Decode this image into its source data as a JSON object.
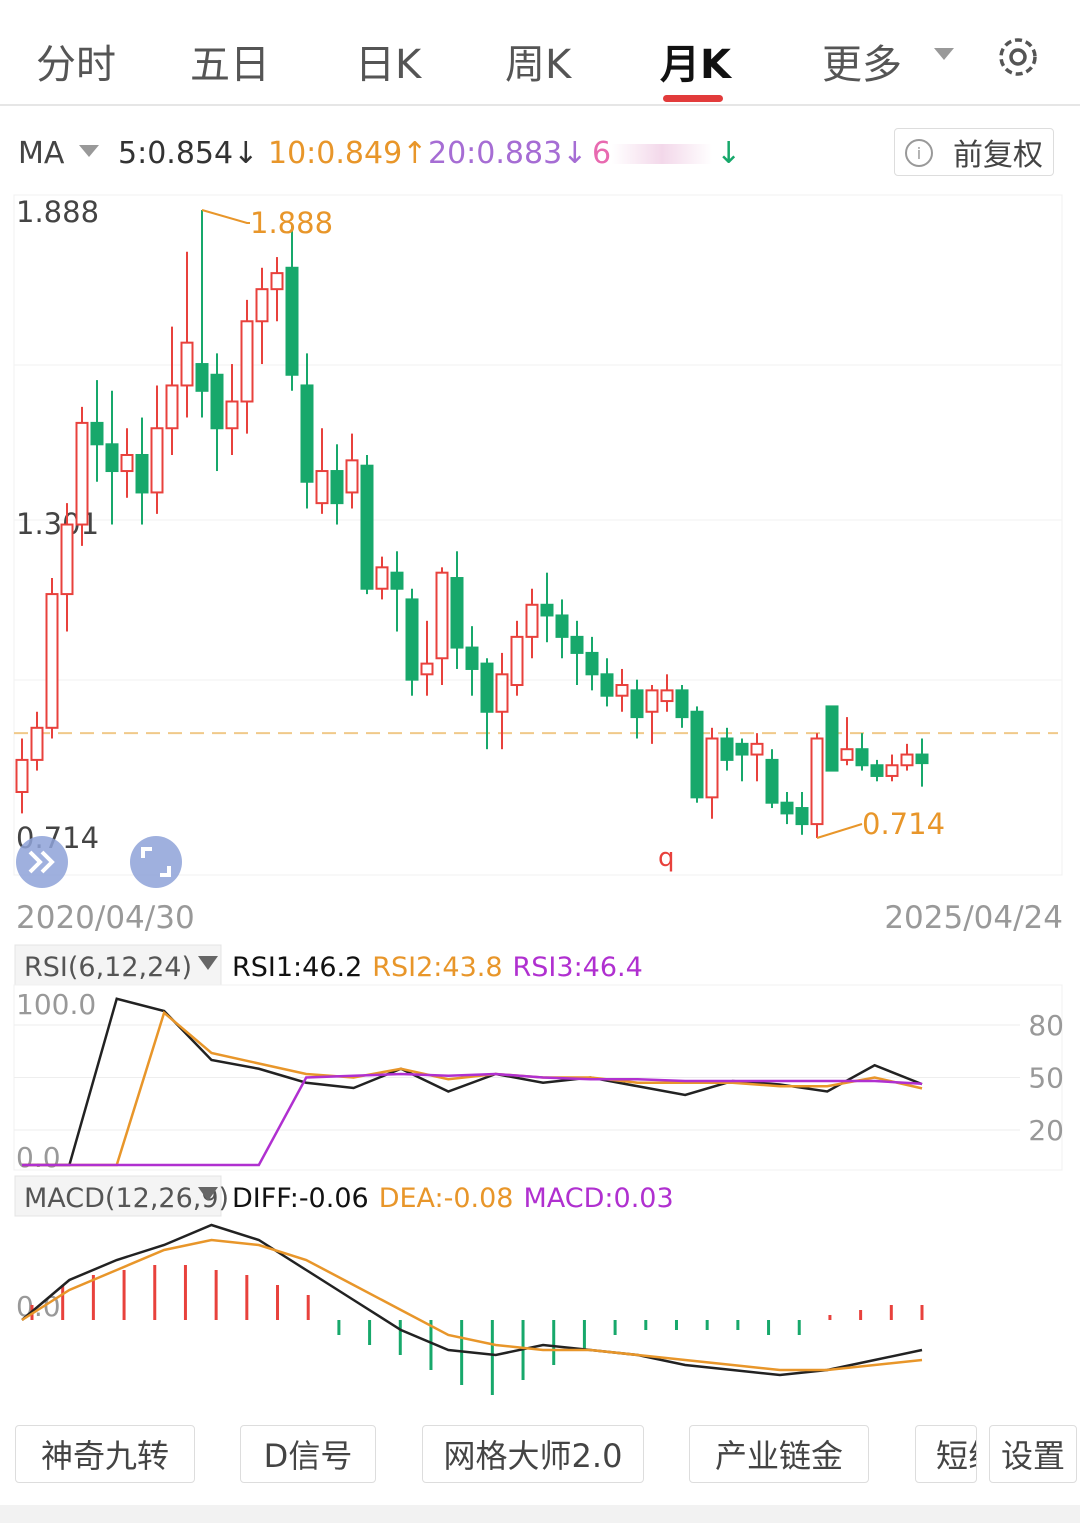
{
  "tabs": [
    "分时",
    "五日",
    "日K",
    "周K",
    "月K",
    "更多"
  ],
  "active_tab": 4,
  "ma_header": {
    "label": "MA",
    "ma5": "5:0.854↓",
    "ma10": "10:0.849↑",
    "ma20": "20:0.883↓",
    "ma60": "6",
    "ma60_arrow": "↓"
  },
  "adjust_button": "前复权",
  "chart_data": {
    "type": "candlestick",
    "up_color": "#e8413c",
    "down_color": "#17a86b",
    "ylim": [
      0.714,
      1.888
    ],
    "yticks": [
      1.888,
      1.301,
      0.714
    ],
    "high_label": "1.888",
    "low_label": "0.714",
    "marker": "q",
    "reference_line": 0.91,
    "start_date": "2020/04/30",
    "end_date": "2025/04/24",
    "candles": [
      {
        "o": 0.8,
        "c": 0.86,
        "h": 0.9,
        "l": 0.76
      },
      {
        "o": 0.86,
        "c": 0.92,
        "h": 0.95,
        "l": 0.84
      },
      {
        "o": 0.92,
        "c": 1.17,
        "h": 1.2,
        "l": 0.9
      },
      {
        "o": 1.17,
        "c": 1.3,
        "h": 1.34,
        "l": 1.1
      },
      {
        "o": 1.3,
        "c": 1.49,
        "h": 1.52,
        "l": 1.26
      },
      {
        "o": 1.49,
        "c": 1.45,
        "h": 1.57,
        "l": 1.38
      },
      {
        "o": 1.45,
        "c": 1.4,
        "h": 1.55,
        "l": 1.3
      },
      {
        "o": 1.4,
        "c": 1.43,
        "h": 1.48,
        "l": 1.35
      },
      {
        "o": 1.43,
        "c": 1.36,
        "h": 1.5,
        "l": 1.3
      },
      {
        "o": 1.36,
        "c": 1.48,
        "h": 1.56,
        "l": 1.32
      },
      {
        "o": 1.48,
        "c": 1.56,
        "h": 1.67,
        "l": 1.43
      },
      {
        "o": 1.56,
        "c": 1.64,
        "h": 1.81,
        "l": 1.5
      },
      {
        "o": 1.6,
        "c": 1.55,
        "h": 1.888,
        "l": 1.5
      },
      {
        "o": 1.58,
        "c": 1.48,
        "h": 1.62,
        "l": 1.4
      },
      {
        "o": 1.48,
        "c": 1.53,
        "h": 1.6,
        "l": 1.43
      },
      {
        "o": 1.53,
        "c": 1.68,
        "h": 1.72,
        "l": 1.47
      },
      {
        "o": 1.68,
        "c": 1.74,
        "h": 1.78,
        "l": 1.6
      },
      {
        "o": 1.74,
        "c": 1.77,
        "h": 1.8,
        "l": 1.68
      },
      {
        "o": 1.78,
        "c": 1.58,
        "h": 1.86,
        "l": 1.55
      },
      {
        "o": 1.56,
        "c": 1.38,
        "h": 1.62,
        "l": 1.33
      },
      {
        "o": 1.34,
        "c": 1.4,
        "h": 1.48,
        "l": 1.32
      },
      {
        "o": 1.4,
        "c": 1.34,
        "h": 1.45,
        "l": 1.3
      },
      {
        "o": 1.36,
        "c": 1.42,
        "h": 1.47,
        "l": 1.33
      },
      {
        "o": 1.41,
        "c": 1.18,
        "h": 1.43,
        "l": 1.17
      },
      {
        "o": 1.18,
        "c": 1.22,
        "h": 1.24,
        "l": 1.16
      },
      {
        "o": 1.21,
        "c": 1.18,
        "h": 1.25,
        "l": 1.1
      },
      {
        "o": 1.16,
        "c": 1.01,
        "h": 1.18,
        "l": 0.98
      },
      {
        "o": 1.02,
        "c": 1.04,
        "h": 1.12,
        "l": 0.98
      },
      {
        "o": 1.05,
        "c": 1.21,
        "h": 1.22,
        "l": 1.0
      },
      {
        "o": 1.2,
        "c": 1.07,
        "h": 1.25,
        "l": 1.03
      },
      {
        "o": 1.07,
        "c": 1.03,
        "h": 1.11,
        "l": 0.98
      },
      {
        "o": 1.04,
        "c": 0.95,
        "h": 1.05,
        "l": 0.88
      },
      {
        "o": 0.95,
        "c": 1.02,
        "h": 1.06,
        "l": 0.88
      },
      {
        "o": 1.0,
        "c": 1.09,
        "h": 1.12,
        "l": 0.98
      },
      {
        "o": 1.09,
        "c": 1.15,
        "h": 1.18,
        "l": 1.05
      },
      {
        "o": 1.15,
        "c": 1.13,
        "h": 1.21,
        "l": 1.08
      },
      {
        "o": 1.13,
        "c": 1.09,
        "h": 1.16,
        "l": 1.05
      },
      {
        "o": 1.09,
        "c": 1.06,
        "h": 1.12,
        "l": 1.0
      },
      {
        "o": 1.06,
        "c": 1.02,
        "h": 1.09,
        "l": 0.99
      },
      {
        "o": 1.02,
        "c": 0.98,
        "h": 1.05,
        "l": 0.96
      },
      {
        "o": 0.98,
        "c": 1.0,
        "h": 1.03,
        "l": 0.95
      },
      {
        "o": 0.99,
        "c": 0.94,
        "h": 1.01,
        "l": 0.9
      },
      {
        "o": 0.95,
        "c": 0.99,
        "h": 1.0,
        "l": 0.89
      },
      {
        "o": 0.97,
        "c": 0.99,
        "h": 1.02,
        "l": 0.95
      },
      {
        "o": 0.99,
        "c": 0.94,
        "h": 1.0,
        "l": 0.92
      },
      {
        "o": 0.95,
        "c": 0.79,
        "h": 0.96,
        "l": 0.78
      },
      {
        "o": 0.79,
        "c": 0.9,
        "h": 0.92,
        "l": 0.75
      },
      {
        "o": 0.9,
        "c": 0.86,
        "h": 0.92,
        "l": 0.84
      },
      {
        "o": 0.89,
        "c": 0.87,
        "h": 0.9,
        "l": 0.82
      },
      {
        "o": 0.87,
        "c": 0.89,
        "h": 0.91,
        "l": 0.82
      },
      {
        "o": 0.86,
        "c": 0.78,
        "h": 0.88,
        "l": 0.77
      },
      {
        "o": 0.78,
        "c": 0.76,
        "h": 0.8,
        "l": 0.74
      },
      {
        "o": 0.77,
        "c": 0.74,
        "h": 0.8,
        "l": 0.72
      },
      {
        "o": 0.74,
        "c": 0.9,
        "h": 0.91,
        "l": 0.714
      },
      {
        "o": 0.96,
        "c": 0.84,
        "h": 0.96,
        "l": 0.84
      },
      {
        "o": 0.86,
        "c": 0.88,
        "h": 0.94,
        "l": 0.85
      },
      {
        "o": 0.88,
        "c": 0.85,
        "h": 0.91,
        "l": 0.84
      },
      {
        "o": 0.85,
        "c": 0.83,
        "h": 0.86,
        "l": 0.82
      },
      {
        "o": 0.83,
        "c": 0.85,
        "h": 0.87,
        "l": 0.82
      },
      {
        "o": 0.85,
        "c": 0.87,
        "h": 0.89,
        "l": 0.84
      },
      {
        "o": 0.87,
        "c": 0.854,
        "h": 0.9,
        "l": 0.81
      }
    ]
  },
  "rsi": {
    "type": "line",
    "title": "RSI(6,12,24)",
    "ylim": [
      0,
      100
    ],
    "left_ticks": [
      {
        "value": 100,
        "label": "100.0"
      },
      {
        "value": 0,
        "label": "0.0"
      }
    ],
    "right_ticks": [
      80,
      50,
      20
    ],
    "series": [
      {
        "name": "RSI1:46.2",
        "color": "#222222",
        "values": [
          0,
          0,
          95,
          88,
          60,
          55,
          47,
          44,
          55,
          42,
          52,
          47,
          50,
          45,
          40,
          48,
          46,
          42,
          57,
          46.2
        ]
      },
      {
        "name": "RSI2:43.8",
        "color": "#e8962a",
        "values": [
          0,
          0,
          0,
          87,
          64,
          58,
          52,
          50,
          55,
          49,
          52,
          50,
          50,
          47,
          47,
          47,
          45,
          45,
          50,
          43.8
        ]
      },
      {
        "name": "RSI3:46.4",
        "color": "#b030d0",
        "values": [
          0,
          0,
          0,
          0,
          0,
          0,
          50,
          51,
          52,
          51,
          52,
          50,
          49,
          49,
          48,
          48,
          48,
          48,
          48,
          46.4
        ]
      }
    ]
  },
  "macd": {
    "type": "line",
    "title": "MACD(12,26,9)",
    "ylim": [
      -0.16,
      0.2
    ],
    "yticks": [
      {
        "value": 0,
        "label": "0.0"
      }
    ],
    "series": [
      {
        "name": "DIFF:-0.06",
        "color": "#222222",
        "values": [
          0,
          0.08,
          0.12,
          0.15,
          0.19,
          0.16,
          0.1,
          0.04,
          -0.02,
          -0.06,
          -0.07,
          -0.05,
          -0.06,
          -0.07,
          -0.09,
          -0.1,
          -0.11,
          -0.1,
          -0.08,
          -0.06
        ]
      },
      {
        "name": "DEA:-0.08",
        "color": "#e8962a",
        "values": [
          0,
          0.06,
          0.1,
          0.14,
          0.16,
          0.15,
          0.12,
          0.07,
          0.02,
          -0.03,
          -0.05,
          -0.06,
          -0.06,
          -0.07,
          -0.08,
          -0.09,
          -0.1,
          -0.1,
          -0.09,
          -0.08
        ]
      }
    ],
    "histogram_name": "MACD:0.03",
    "histogram": [
      0.03,
      0.07,
      0.09,
      0.1,
      0.11,
      0.11,
      0.1,
      0.09,
      0.07,
      0.05,
      -0.03,
      -0.05,
      -0.07,
      -0.1,
      -0.13,
      -0.15,
      -0.12,
      -0.09,
      -0.06,
      -0.03,
      -0.02,
      -0.02,
      -0.02,
      -0.02,
      -0.03,
      -0.03,
      0.01,
      0.02,
      0.03,
      0.03
    ]
  },
  "bottom_buttons": [
    "神奇九转",
    "D信号",
    "网格大师2.0",
    "产业链金",
    "短线",
    "设置"
  ]
}
